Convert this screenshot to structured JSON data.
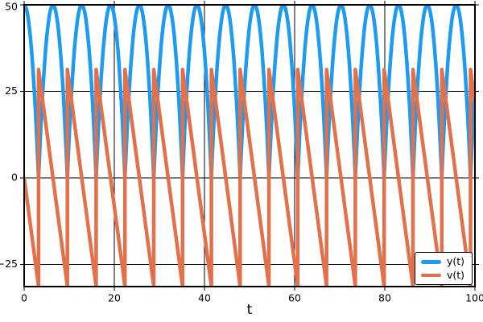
{
  "chart_data": {
    "type": "line",
    "title": "",
    "xlabel": "t",
    "ylabel": "",
    "xlim": [
      0,
      100
    ],
    "ylim": [
      -31.4,
      50
    ],
    "xticks": {
      "values": [
        0,
        20,
        40,
        60,
        80,
        100
      ],
      "labels": [
        "0",
        "20",
        "40",
        "60",
        "80",
        "100"
      ]
    },
    "yticks": {
      "values": [
        50,
        25,
        0,
        -25
      ],
      "labels": [
        "50",
        "25",
        "0",
        "−25"
      ]
    },
    "grid": true,
    "grid_color": "#000000",
    "spine_color": "#000000",
    "background": "#ffffff",
    "tick_sides": [
      "left",
      "right",
      "top",
      "bottom"
    ],
    "legend": {
      "position": "lower right",
      "entries": [
        "y(t)",
        "v(t)"
      ]
    },
    "series": [
      {
        "name": "y(t)",
        "color": "#1C9BF0",
        "line_width": 4.5,
        "kind": "bouncing_ball_height",
        "model": {
          "y0": 50,
          "g": 9.8,
          "v_bounce": 31.305,
          "first_bounce_t": 3.1944,
          "bounce_period": 6.3888,
          "t_max": 100
        },
        "keypoints": {
          "start": [
            0,
            50
          ],
          "peak_value": 50,
          "min_value": 0,
          "bounce_times": [
            3.19,
            9.58,
            15.97,
            22.36,
            28.75,
            35.14,
            41.53,
            47.92,
            54.3,
            60.69,
            67.08,
            73.47,
            79.86,
            86.25,
            92.64,
            99.03
          ]
        }
      },
      {
        "name": "v(t)",
        "color": "#E2714B",
        "line_width": 4.5,
        "kind": "bouncing_ball_velocity",
        "model": {
          "y0": 50,
          "g": 9.8,
          "v_bounce": 31.305,
          "first_bounce_t": 3.1944,
          "bounce_period": 6.3888,
          "t_max": 100
        },
        "keypoints": {
          "start": [
            0,
            0
          ],
          "max_value": 31.3,
          "min_value": -31.3,
          "end_value": 21.8
        }
      }
    ]
  }
}
